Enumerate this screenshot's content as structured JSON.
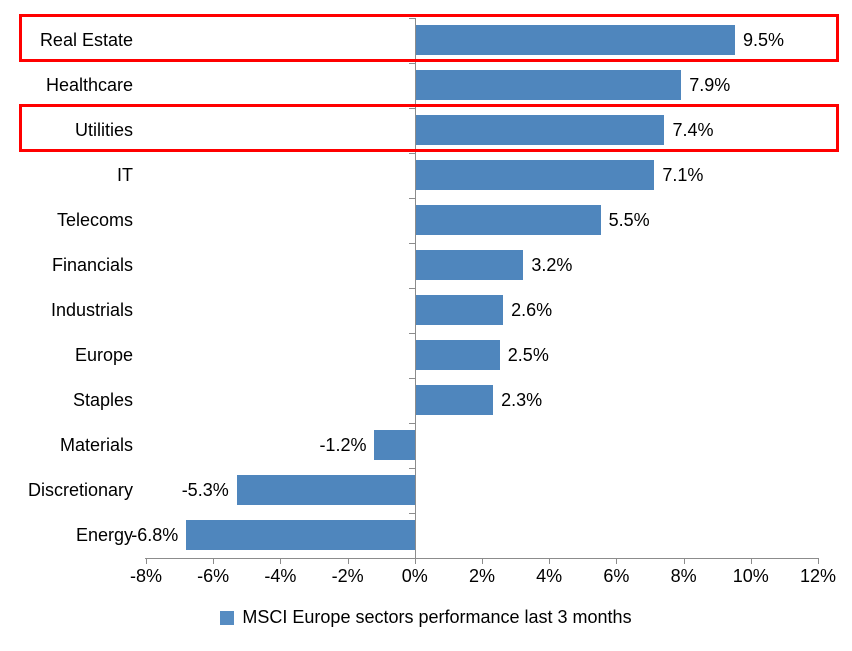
{
  "chart_data": {
    "type": "bar",
    "orientation": "horizontal",
    "categories": [
      "Real Estate",
      "Healthcare",
      "Utilities",
      "IT",
      "Telecoms",
      "Financials",
      "Industrials",
      "Europe",
      "Staples",
      "Materials",
      "Discretionary",
      "Energy"
    ],
    "values": [
      9.5,
      7.9,
      7.4,
      7.1,
      5.5,
      3.2,
      2.6,
      2.5,
      2.3,
      -1.2,
      -5.3,
      -6.8
    ],
    "value_labels": [
      "9.5%",
      "7.9%",
      "7.4%",
      "7.1%",
      "5.5%",
      "3.2%",
      "2.6%",
      "2.5%",
      "2.3%",
      "-1.2%",
      "-5.3%",
      "-6.8%"
    ],
    "x_tick_labels": [
      "-8%",
      "-6%",
      "-4%",
      "-2%",
      "0%",
      "2%",
      "4%",
      "6%",
      "8%",
      "10%",
      "12%"
    ],
    "x_tick_values": [
      -8,
      -6,
      -4,
      -2,
      0,
      2,
      4,
      6,
      8,
      10,
      12
    ],
    "xlim": [
      -8,
      12
    ],
    "grid": false,
    "legend": "MSCI Europe sectors performance last 3 months",
    "legend_position": "bottom-center",
    "bar_color": "#4F86BD",
    "legend_swatch_color": "#568CC2",
    "axis_color": "#8C8C8C",
    "highlight_color": "#FF0000",
    "highlighted_categories": [
      "Real Estate",
      "Utilities"
    ]
  }
}
